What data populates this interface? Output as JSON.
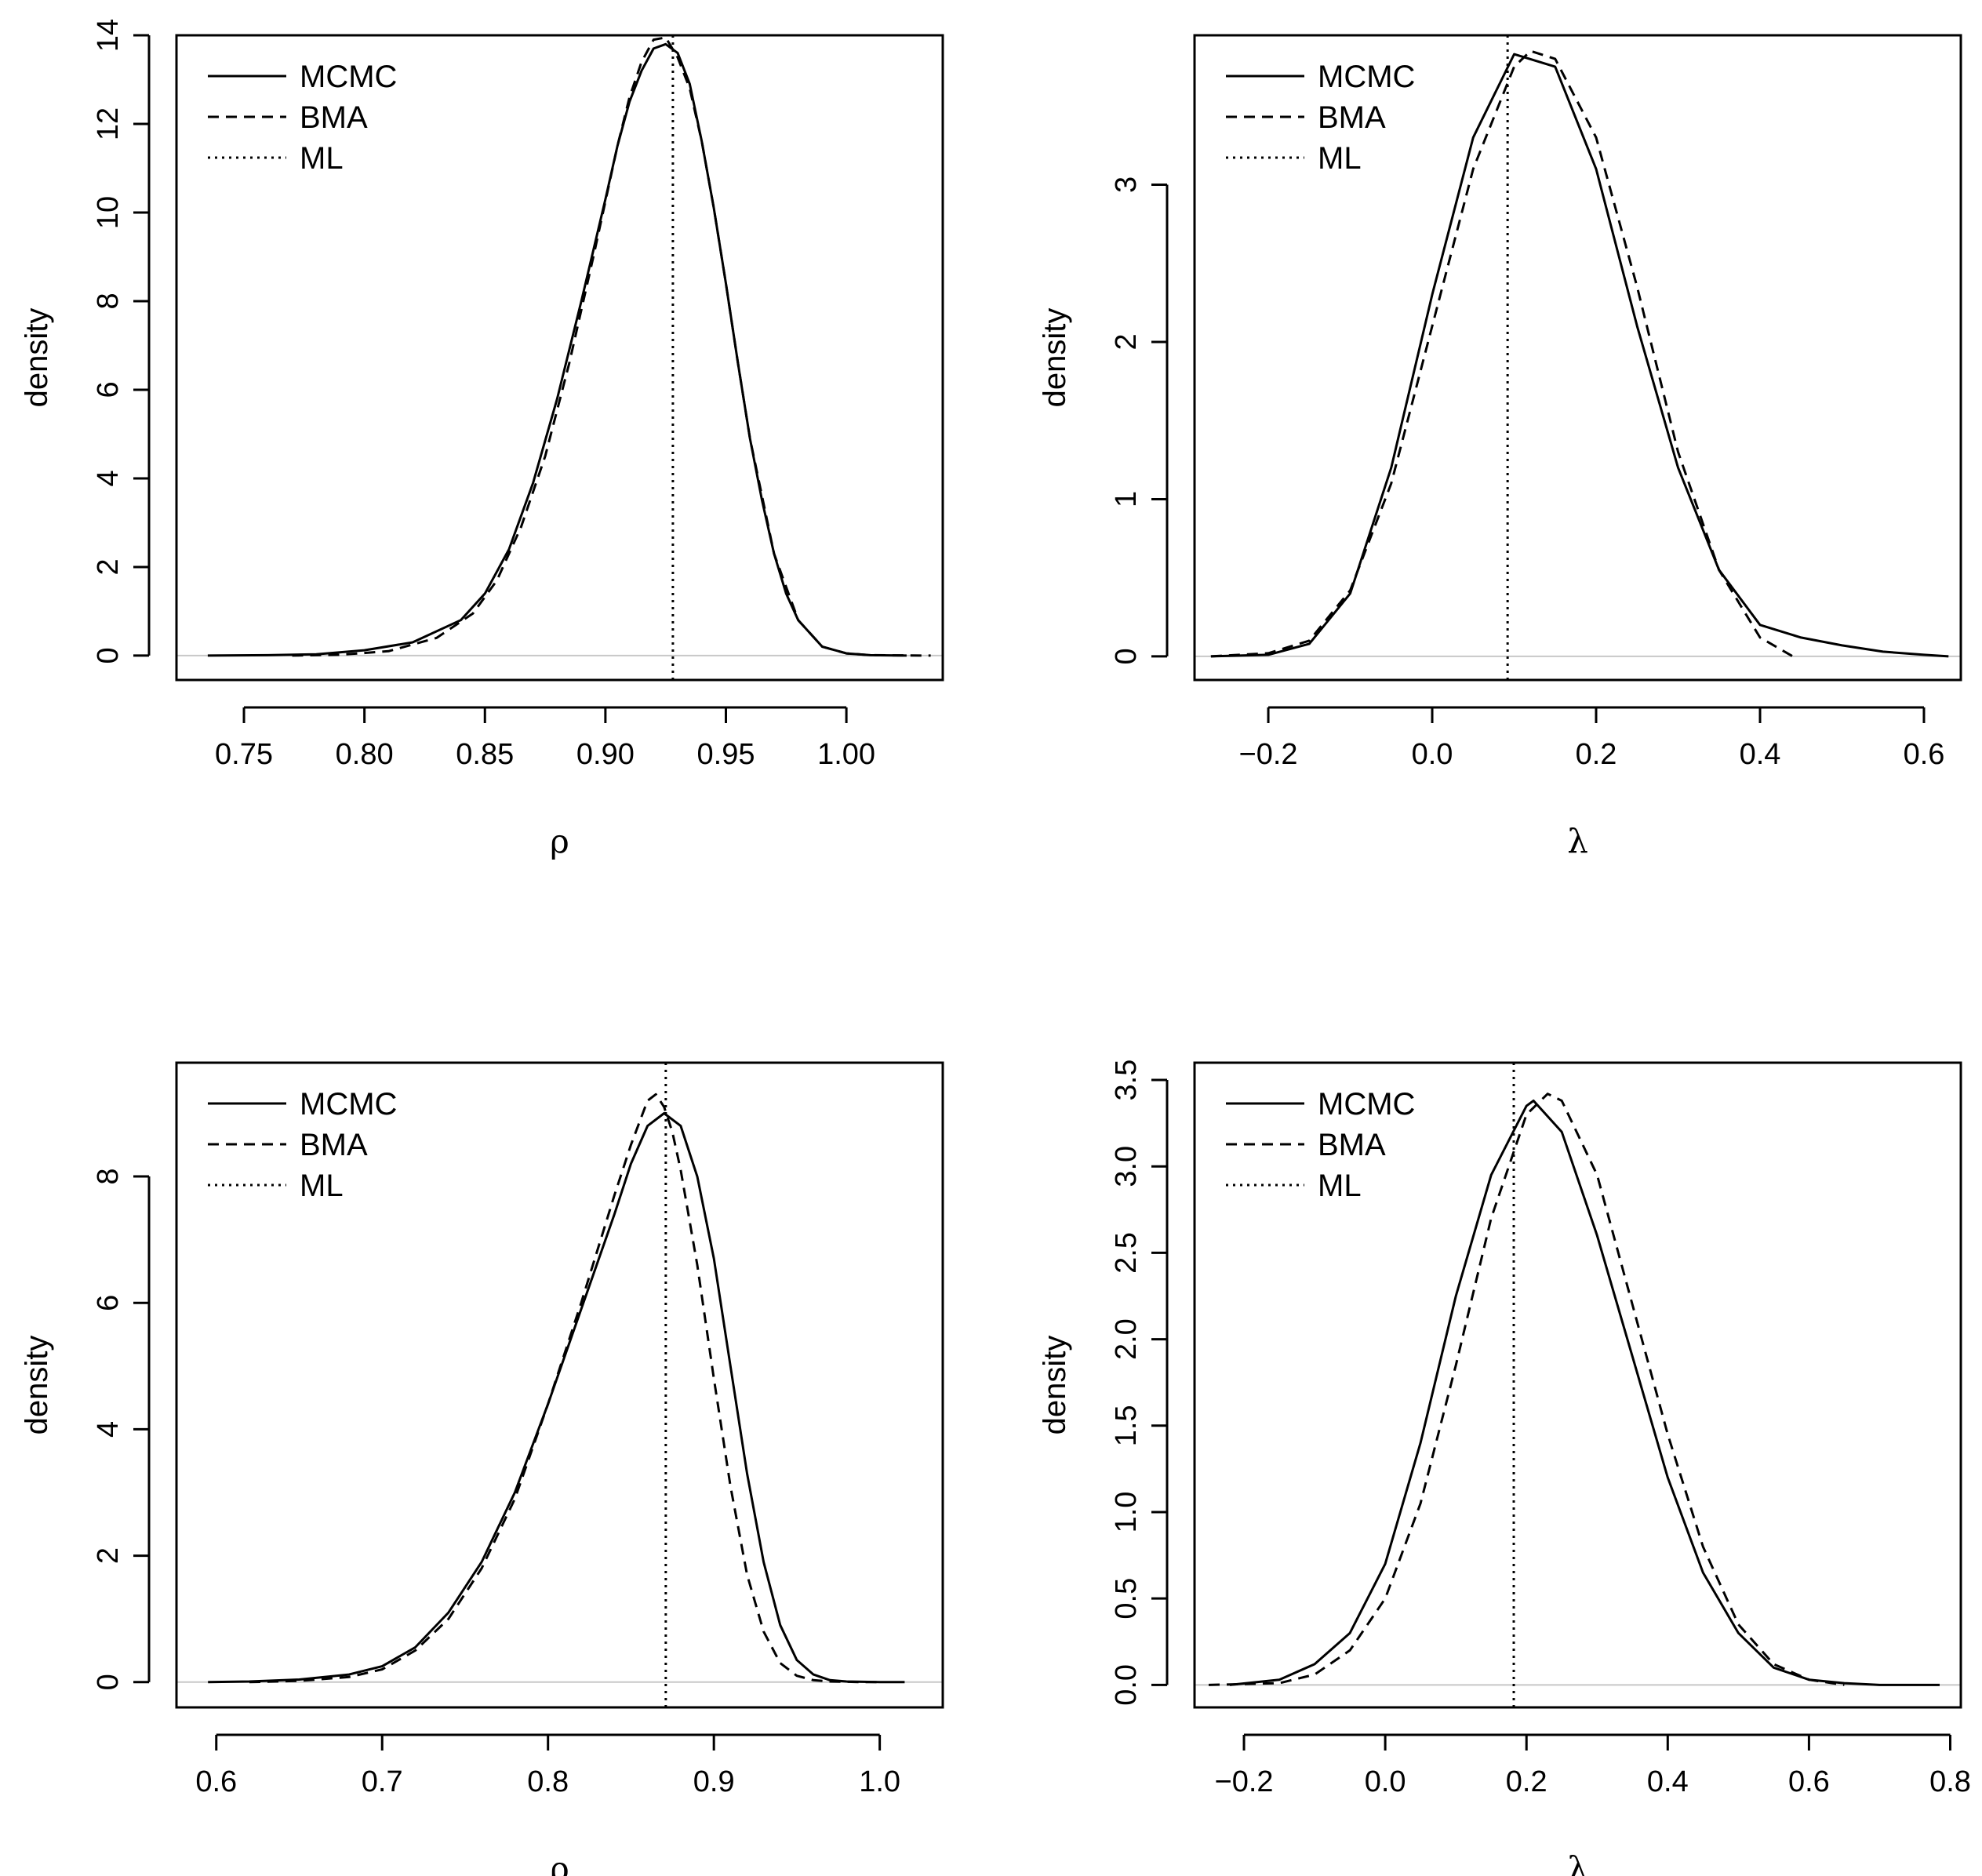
{
  "legend": {
    "entries": [
      {
        "label": "MCMC",
        "dash": "solid"
      },
      {
        "label": "BMA",
        "dash": "dashed"
      },
      {
        "label": "ML",
        "dash": "dotted"
      }
    ],
    "position": "top-left"
  },
  "chart_data": [
    {
      "id": "rho-top",
      "type": "line",
      "title": "",
      "xlabel": "ρ",
      "ylabel": "density",
      "xlim": [
        0.722,
        1.04
      ],
      "ylim": [
        -0.55,
        14.0
      ],
      "xticks": [
        0.75,
        0.8,
        0.85,
        0.9,
        0.95,
        1.0
      ],
      "xtick_labels": [
        "0.75",
        "0.80",
        "0.85",
        "0.90",
        "0.95",
        "1.00"
      ],
      "yticks": [
        0,
        2,
        4,
        6,
        8,
        10,
        12,
        14
      ],
      "ytick_labels": [
        "0",
        "2",
        "4",
        "6",
        "8",
        "10",
        "12",
        "14"
      ],
      "ml_value": 0.928,
      "series": [
        {
          "name": "MCMC",
          "x": [
            0.735,
            0.76,
            0.78,
            0.8,
            0.82,
            0.84,
            0.85,
            0.86,
            0.87,
            0.88,
            0.89,
            0.9,
            0.905,
            0.91,
            0.915,
            0.92,
            0.925,
            0.93,
            0.935,
            0.94,
            0.945,
            0.95,
            0.955,
            0.96,
            0.965,
            0.97,
            0.975,
            0.98,
            0.99,
            1.0,
            1.01,
            1.025
          ],
          "y": [
            0,
            0.01,
            0.03,
            0.12,
            0.3,
            0.8,
            1.4,
            2.4,
            3.9,
            5.8,
            8.0,
            10.3,
            11.5,
            12.5,
            13.2,
            13.7,
            13.8,
            13.6,
            12.9,
            11.6,
            10.1,
            8.4,
            6.6,
            4.9,
            3.5,
            2.3,
            1.4,
            0.8,
            0.2,
            0.05,
            0.01,
            0
          ]
        },
        {
          "name": "BMA",
          "x": [
            0.77,
            0.79,
            0.81,
            0.83,
            0.845,
            0.855,
            0.865,
            0.875,
            0.885,
            0.895,
            0.905,
            0.91,
            0.915,
            0.92,
            0.925,
            0.93,
            0.935,
            0.94,
            0.945,
            0.95,
            0.955,
            0.96,
            0.97,
            0.98,
            0.99,
            1.0,
            1.01,
            1.035
          ],
          "y": [
            0,
            0.02,
            0.1,
            0.4,
            0.95,
            1.7,
            2.9,
            4.5,
            6.6,
            9.0,
            11.5,
            12.6,
            13.4,
            13.9,
            13.95,
            13.5,
            12.8,
            11.6,
            10.1,
            8.4,
            6.6,
            4.9,
            2.3,
            0.8,
            0.2,
            0.05,
            0.01,
            0
          ]
        }
      ]
    },
    {
      "id": "lambda-top",
      "type": "line",
      "title": "",
      "xlabel": "λ",
      "ylabel": "density",
      "xlim": [
        -0.29,
        0.645
      ],
      "ylim": [
        -0.15,
        3.95
      ],
      "xticks": [
        -0.2,
        0.0,
        0.2,
        0.4,
        0.6
      ],
      "xtick_labels": [
        "−0.2",
        "0.0",
        "0.2",
        "0.4",
        "0.6"
      ],
      "yticks": [
        0,
        1,
        2,
        3
      ],
      "ytick_labels": [
        "0",
        "1",
        "2",
        "3"
      ],
      "ml_value": 0.092,
      "series": [
        {
          "name": "MCMC",
          "x": [
            -0.27,
            -0.2,
            -0.15,
            -0.1,
            -0.05,
            0.0,
            0.05,
            0.1,
            0.15,
            0.2,
            0.25,
            0.3,
            0.35,
            0.4,
            0.45,
            0.5,
            0.55,
            0.6,
            0.63
          ],
          "y": [
            0,
            0.01,
            0.08,
            0.4,
            1.2,
            2.3,
            3.3,
            3.83,
            3.75,
            3.1,
            2.1,
            1.2,
            0.55,
            0.2,
            0.12,
            0.07,
            0.03,
            0.01,
            0
          ]
        },
        {
          "name": "BMA",
          "x": [
            -0.27,
            -0.2,
            -0.15,
            -0.1,
            -0.05,
            0.0,
            0.05,
            0.1,
            0.12,
            0.15,
            0.2,
            0.25,
            0.3,
            0.35,
            0.4,
            0.44
          ],
          "y": [
            0,
            0.02,
            0.1,
            0.42,
            1.1,
            2.1,
            3.1,
            3.75,
            3.85,
            3.8,
            3.3,
            2.35,
            1.3,
            0.55,
            0.12,
            0
          ]
        }
      ]
    },
    {
      "id": "rho-bottom",
      "type": "line",
      "title": "",
      "xlabel": "ρ",
      "ylabel": "density",
      "xlim": [
        0.576,
        1.038
      ],
      "ylim": [
        -0.4,
        9.8
      ],
      "xticks": [
        0.6,
        0.7,
        0.8,
        0.9,
        1.0
      ],
      "xtick_labels": [
        "0.6",
        "0.7",
        "0.8",
        "0.9",
        "1.0"
      ],
      "yticks": [
        0,
        2,
        4,
        6,
        8
      ],
      "ytick_labels": [
        "0",
        "2",
        "4",
        "6",
        "8"
      ],
      "ml_value": 0.871,
      "series": [
        {
          "name": "MCMC",
          "x": [
            0.595,
            0.62,
            0.65,
            0.68,
            0.7,
            0.72,
            0.74,
            0.76,
            0.78,
            0.8,
            0.82,
            0.84,
            0.85,
            0.86,
            0.87,
            0.88,
            0.89,
            0.9,
            0.91,
            0.92,
            0.93,
            0.94,
            0.95,
            0.96,
            0.97,
            0.98,
            1.0,
            1.015
          ],
          "y": [
            0,
            0.01,
            0.04,
            0.12,
            0.25,
            0.55,
            1.1,
            1.9,
            3.0,
            4.4,
            5.9,
            7.4,
            8.2,
            8.8,
            9.0,
            8.8,
            8.0,
            6.7,
            5.0,
            3.3,
            1.9,
            0.9,
            0.35,
            0.12,
            0.03,
            0.01,
            0,
            0
          ]
        },
        {
          "name": "BMA",
          "x": [
            0.62,
            0.65,
            0.68,
            0.7,
            0.72,
            0.74,
            0.76,
            0.78,
            0.8,
            0.82,
            0.84,
            0.85,
            0.86,
            0.865,
            0.87,
            0.875,
            0.88,
            0.89,
            0.9,
            0.91,
            0.92,
            0.93,
            0.94,
            0.95,
            0.96,
            0.97,
            0.99,
            1.0
          ],
          "y": [
            0,
            0.02,
            0.08,
            0.2,
            0.5,
            1.0,
            1.8,
            2.9,
            4.4,
            6.0,
            7.7,
            8.5,
            9.2,
            9.3,
            9.1,
            8.7,
            8.1,
            6.6,
            4.8,
            3.1,
            1.7,
            0.8,
            0.3,
            0.1,
            0.03,
            0.01,
            0,
            0
          ]
        }
      ]
    },
    {
      "id": "lambda-bottom",
      "type": "line",
      "title": "",
      "xlabel": "λ",
      "ylabel": "density",
      "xlim": [
        -0.27,
        0.815
      ],
      "ylim": [
        -0.13,
        3.6
      ],
      "xticks": [
        -0.2,
        0.0,
        0.2,
        0.4,
        0.6,
        0.8
      ],
      "xtick_labels": [
        "−0.2",
        "0.0",
        "0.2",
        "0.4",
        "0.6",
        "0.8"
      ],
      "yticks": [
        0.0,
        0.5,
        1.0,
        1.5,
        2.0,
        2.5,
        3.0,
        3.5
      ],
      "ytick_labels": [
        "0.0",
        "0.5",
        "1.0",
        "1.5",
        "2.0",
        "2.5",
        "3.0",
        "3.5"
      ],
      "ml_value": 0.182,
      "series": [
        {
          "name": "MCMC",
          "x": [
            -0.22,
            -0.15,
            -0.1,
            -0.05,
            0.0,
            0.05,
            0.1,
            0.15,
            0.2,
            0.21,
            0.25,
            0.3,
            0.35,
            0.4,
            0.45,
            0.5,
            0.55,
            0.6,
            0.65,
            0.7,
            0.785
          ],
          "y": [
            0,
            0.03,
            0.12,
            0.3,
            0.7,
            1.4,
            2.25,
            2.95,
            3.35,
            3.38,
            3.2,
            2.6,
            1.9,
            1.2,
            0.65,
            0.3,
            0.1,
            0.03,
            0.01,
            0,
            0
          ]
        },
        {
          "name": "BMA",
          "x": [
            -0.25,
            -0.15,
            -0.1,
            -0.05,
            0.0,
            0.05,
            0.1,
            0.15,
            0.2,
            0.23,
            0.25,
            0.3,
            0.35,
            0.4,
            0.45,
            0.5,
            0.55,
            0.6,
            0.65
          ],
          "y": [
            0,
            0.01,
            0.06,
            0.2,
            0.5,
            1.05,
            1.85,
            2.7,
            3.3,
            3.42,
            3.38,
            2.95,
            2.2,
            1.45,
            0.8,
            0.35,
            0.12,
            0.03,
            0
          ]
        }
      ]
    }
  ]
}
